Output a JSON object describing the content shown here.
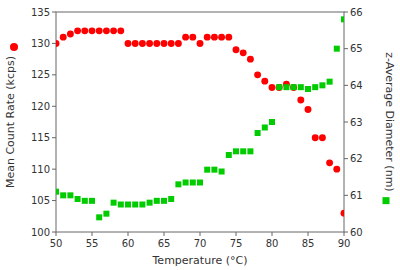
{
  "chart_data": {
    "type": "scatter",
    "xlabel": "Temperature (°C)",
    "ylabel": "Mean Count Rate (kcps)",
    "y2label": "z-Average Diameter (nm)",
    "x": [
      50,
      51,
      52,
      53,
      54,
      55,
      56,
      57,
      58,
      59,
      60,
      61,
      62,
      63,
      64,
      65,
      66,
      67,
      68,
      69,
      70,
      71,
      72,
      73,
      74,
      75,
      76,
      77,
      78,
      79,
      80,
      81,
      82,
      83,
      84,
      85,
      86,
      87,
      88,
      89,
      90
    ],
    "series": [
      {
        "color": "#ff0000",
        "marker": "circle",
        "values": [
          130,
          131,
          131.5,
          132,
          132,
          132,
          132,
          132,
          132,
          132,
          130,
          130,
          130,
          130,
          130,
          130,
          130,
          130,
          131,
          131,
          130,
          131,
          131,
          131,
          131,
          129,
          128.5,
          127.5,
          125,
          124,
          123,
          123,
          123.5,
          123,
          121,
          119.5,
          115,
          115,
          111,
          110,
          103
        ]
      },
      {
        "color": "#00cc00",
        "marker": "square",
        "axis": "y2",
        "values": [
          61.1,
          61.0,
          61.0,
          60.9,
          60.85,
          60.85,
          60.4,
          60.5,
          60.8,
          60.75,
          60.75,
          60.75,
          60.75,
          60.8,
          60.85,
          60.85,
          60.9,
          61.3,
          61.35,
          61.35,
          61.35,
          61.7,
          61.7,
          61.65,
          62.1,
          62.2,
          62.2,
          62.2,
          62.7,
          62.85,
          63.0,
          63.95,
          63.95,
          63.95,
          63.95,
          63.9,
          63.95,
          64.0,
          64.1,
          65.0,
          65.8
        ]
      }
    ],
    "xlim": [
      50,
      90
    ],
    "xticks": [
      50,
      55,
      60,
      65,
      70,
      75,
      80,
      85,
      90
    ],
    "ylim": [
      100,
      135
    ],
    "yticks": [
      100,
      105,
      110,
      115,
      120,
      125,
      130,
      135
    ],
    "y2lim": [
      60,
      66
    ],
    "y2ticks": [
      60,
      61,
      62,
      63,
      64,
      65,
      66
    ],
    "grid": false
  }
}
